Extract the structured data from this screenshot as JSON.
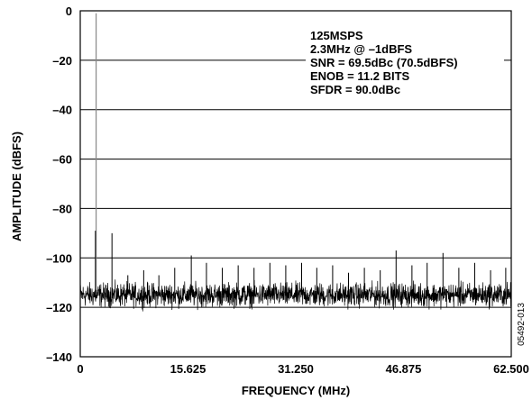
{
  "chart_data": {
    "type": "line",
    "xlabel": "FREQUENCY (MHz)",
    "ylabel": "AMPLITUDE (dBFS)",
    "xlim": [
      0,
      62.5
    ],
    "ylim": [
      -140,
      0
    ],
    "x_ticks": [
      "0",
      "15.625",
      "31.250",
      "46.875",
      "62.500"
    ],
    "x_tick_values": [
      0,
      15.625,
      31.25,
      46.875,
      62.5
    ],
    "y_ticks": [
      "0",
      "–20",
      "–40",
      "–60",
      "–80",
      "–100",
      "–120",
      "–140"
    ],
    "y_tick_values": [
      0,
      -20,
      -40,
      -60,
      -80,
      -100,
      -120,
      -140
    ],
    "grid": "horizontal",
    "noise_floor": {
      "center": -115,
      "range": [
        -122,
        -108
      ]
    },
    "spurs": [
      {
        "x": 2.3,
        "y": -1
      },
      {
        "x": 2.2,
        "y": -89
      },
      {
        "x": 4.6,
        "y": -90
      },
      {
        "x": 6.9,
        "y": -107
      },
      {
        "x": 9.2,
        "y": -105
      },
      {
        "x": 11.4,
        "y": -107
      },
      {
        "x": 13.7,
        "y": -104
      },
      {
        "x": 16.1,
        "y": -99
      },
      {
        "x": 18.3,
        "y": -102
      },
      {
        "x": 20.6,
        "y": -104
      },
      {
        "x": 22.9,
        "y": -103
      },
      {
        "x": 25.2,
        "y": -104
      },
      {
        "x": 27.5,
        "y": -102
      },
      {
        "x": 29.8,
        "y": -103
      },
      {
        "x": 32.1,
        "y": -102
      },
      {
        "x": 34.3,
        "y": -104
      },
      {
        "x": 36.6,
        "y": -103
      },
      {
        "x": 38.9,
        "y": -106
      },
      {
        "x": 41.2,
        "y": -104
      },
      {
        "x": 43.5,
        "y": -105
      },
      {
        "x": 45.8,
        "y": -97
      },
      {
        "x": 48.1,
        "y": -103
      },
      {
        "x": 50.3,
        "y": -102
      },
      {
        "x": 52.6,
        "y": -98
      },
      {
        "x": 54.9,
        "y": -104
      },
      {
        "x": 57.2,
        "y": -102
      },
      {
        "x": 59.5,
        "y": -105
      },
      {
        "x": 61.7,
        "y": -104
      }
    ],
    "series_color": "#000000",
    "annotations": [
      "125MSPS",
      "2.3MHz @ –1dBFS",
      "SNR = 69.5dBc (70.5dBFS)",
      "ENOB = 11.2 BITS",
      "SFDR = 90.0dBc"
    ],
    "figure_code": "05492-013"
  }
}
